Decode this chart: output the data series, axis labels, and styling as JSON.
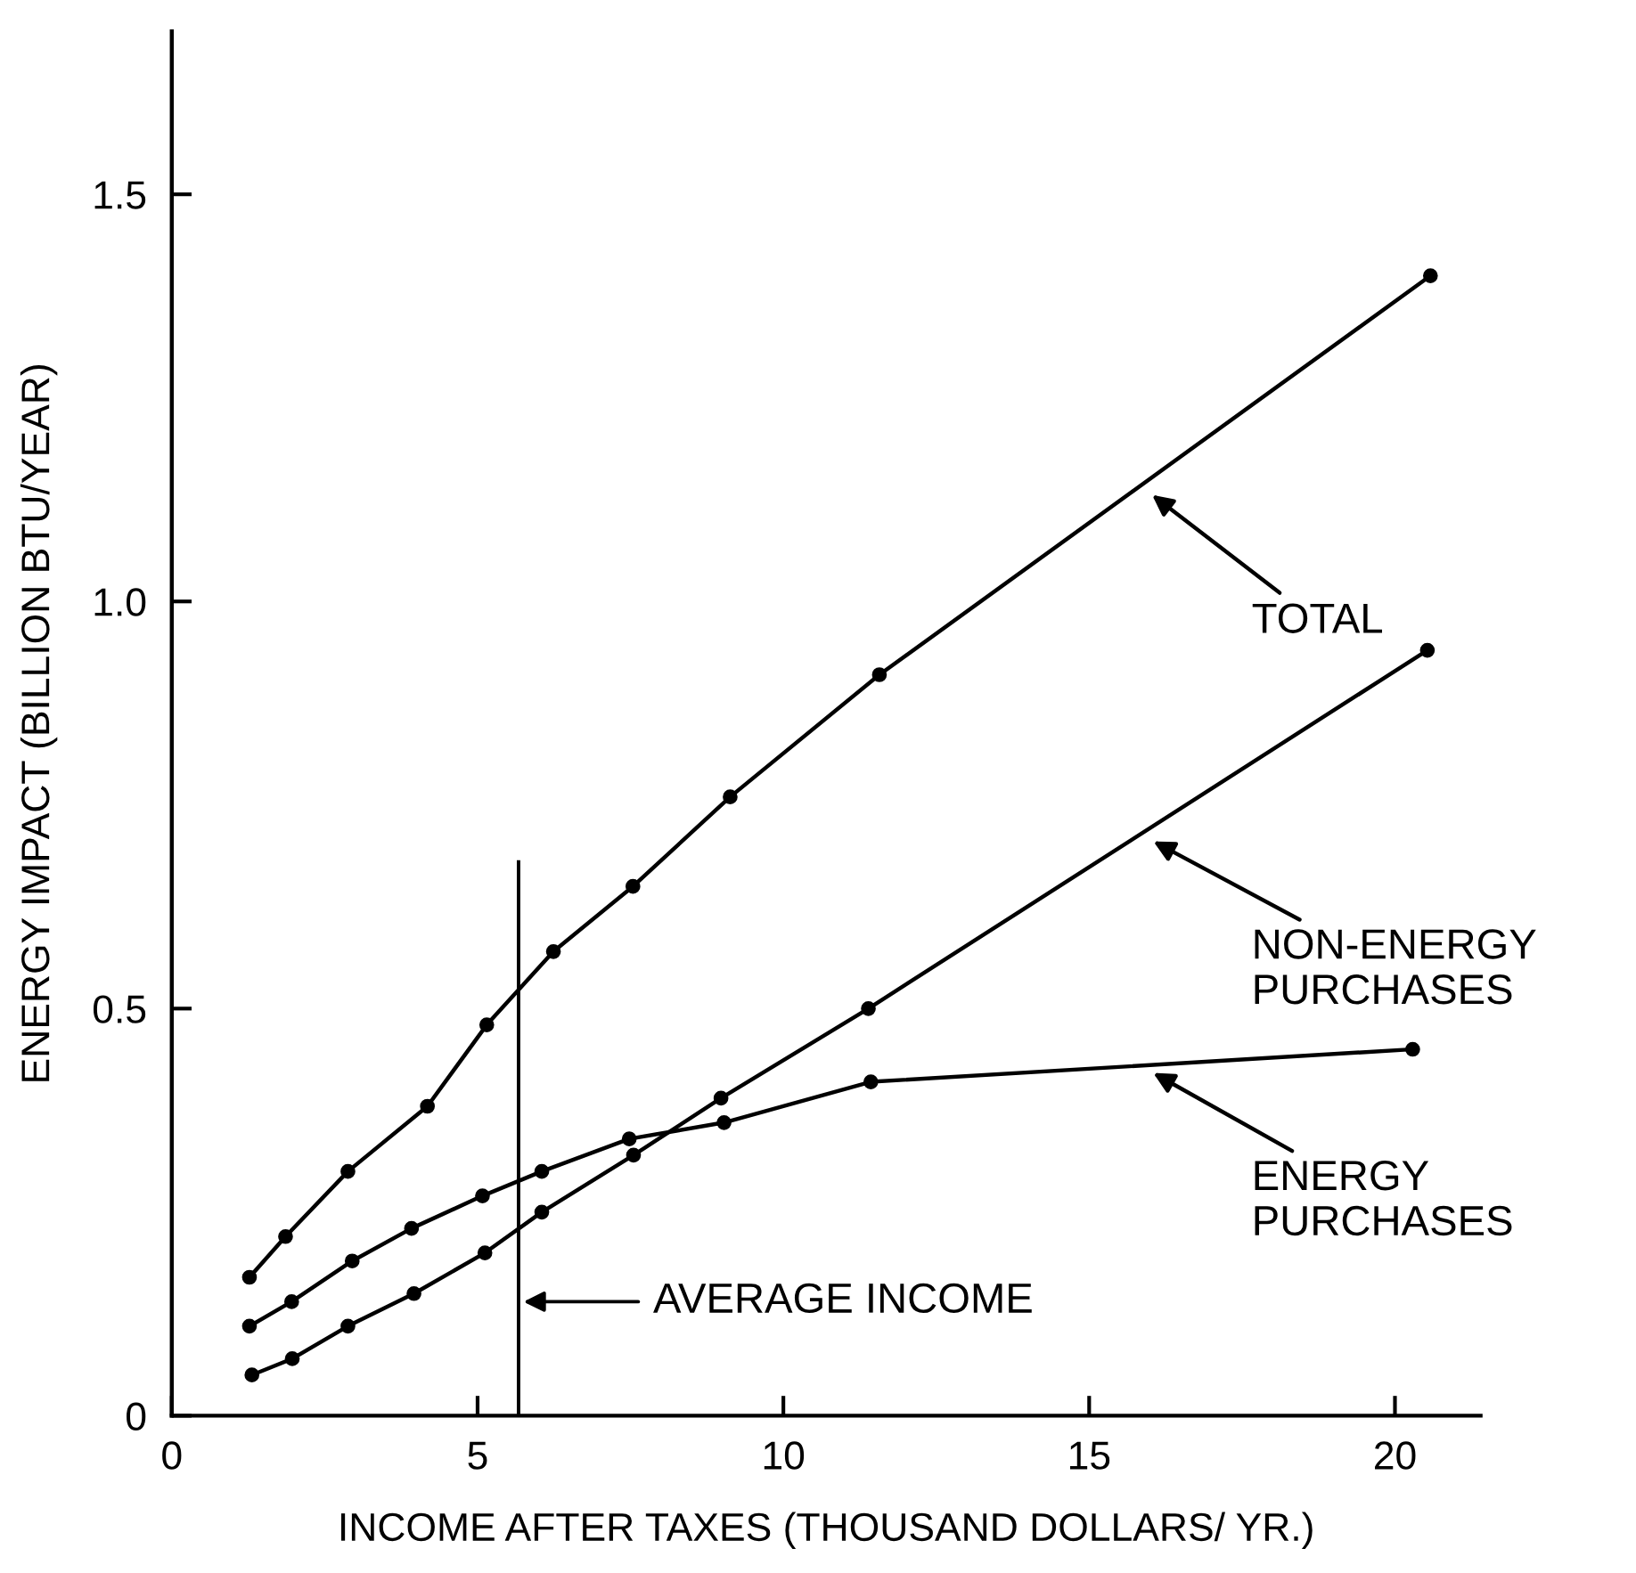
{
  "chart_data": {
    "type": "line",
    "xlabel": "INCOME AFTER TAXES (THOUSAND DOLLARS/ YR.)",
    "ylabel": "ENERGY IMPACT (BILLION BTU/YEAR)",
    "xlim": [
      0,
      21.4
    ],
    "xticks": [
      0,
      5,
      10,
      15,
      20
    ],
    "ylim": [
      0,
      1.7
    ],
    "yticks": [
      0,
      0.5,
      {
        "value": 1.0,
        "label": "1.0"
      },
      1.5
    ],
    "marker": "circle",
    "line_style": "solid",
    "grid": false,
    "legend": "right",
    "series": [
      {
        "name": "TOTAL",
        "color": "#000000",
        "x": [
          1.27,
          1.86,
          2.88,
          4.18,
          5.15,
          6.24,
          7.54,
          9.13,
          11.57,
          20.58
        ],
        "values": [
          0.17,
          0.22,
          0.3,
          0.38,
          0.48,
          0.57,
          0.65,
          0.76,
          0.91,
          1.4
        ]
      },
      {
        "name": "NON-ENERGY\nPURCHASES",
        "color": "#000000",
        "x": [
          1.31,
          1.97,
          2.88,
          3.96,
          5.12,
          6.05,
          7.55,
          8.98,
          11.39,
          20.53
        ],
        "values": [
          0.05,
          0.07,
          0.11,
          0.15,
          0.2,
          0.25,
          0.32,
          0.39,
          0.5,
          0.94
        ]
      },
      {
        "name": "ENERGY\nPURCHASES",
        "color": "#000000",
        "x": [
          1.27,
          1.96,
          2.95,
          3.92,
          5.08,
          6.05,
          7.48,
          9.03,
          11.43,
          20.29
        ],
        "values": [
          0.11,
          0.14,
          0.19,
          0.23,
          0.27,
          0.3,
          0.34,
          0.36,
          0.41,
          0.45
        ]
      }
    ],
    "ref_lines": [
      {
        "axis": "x",
        "value": 5.67,
        "label": "AVERAGE INCOME",
        "color": "#000000"
      }
    ]
  }
}
